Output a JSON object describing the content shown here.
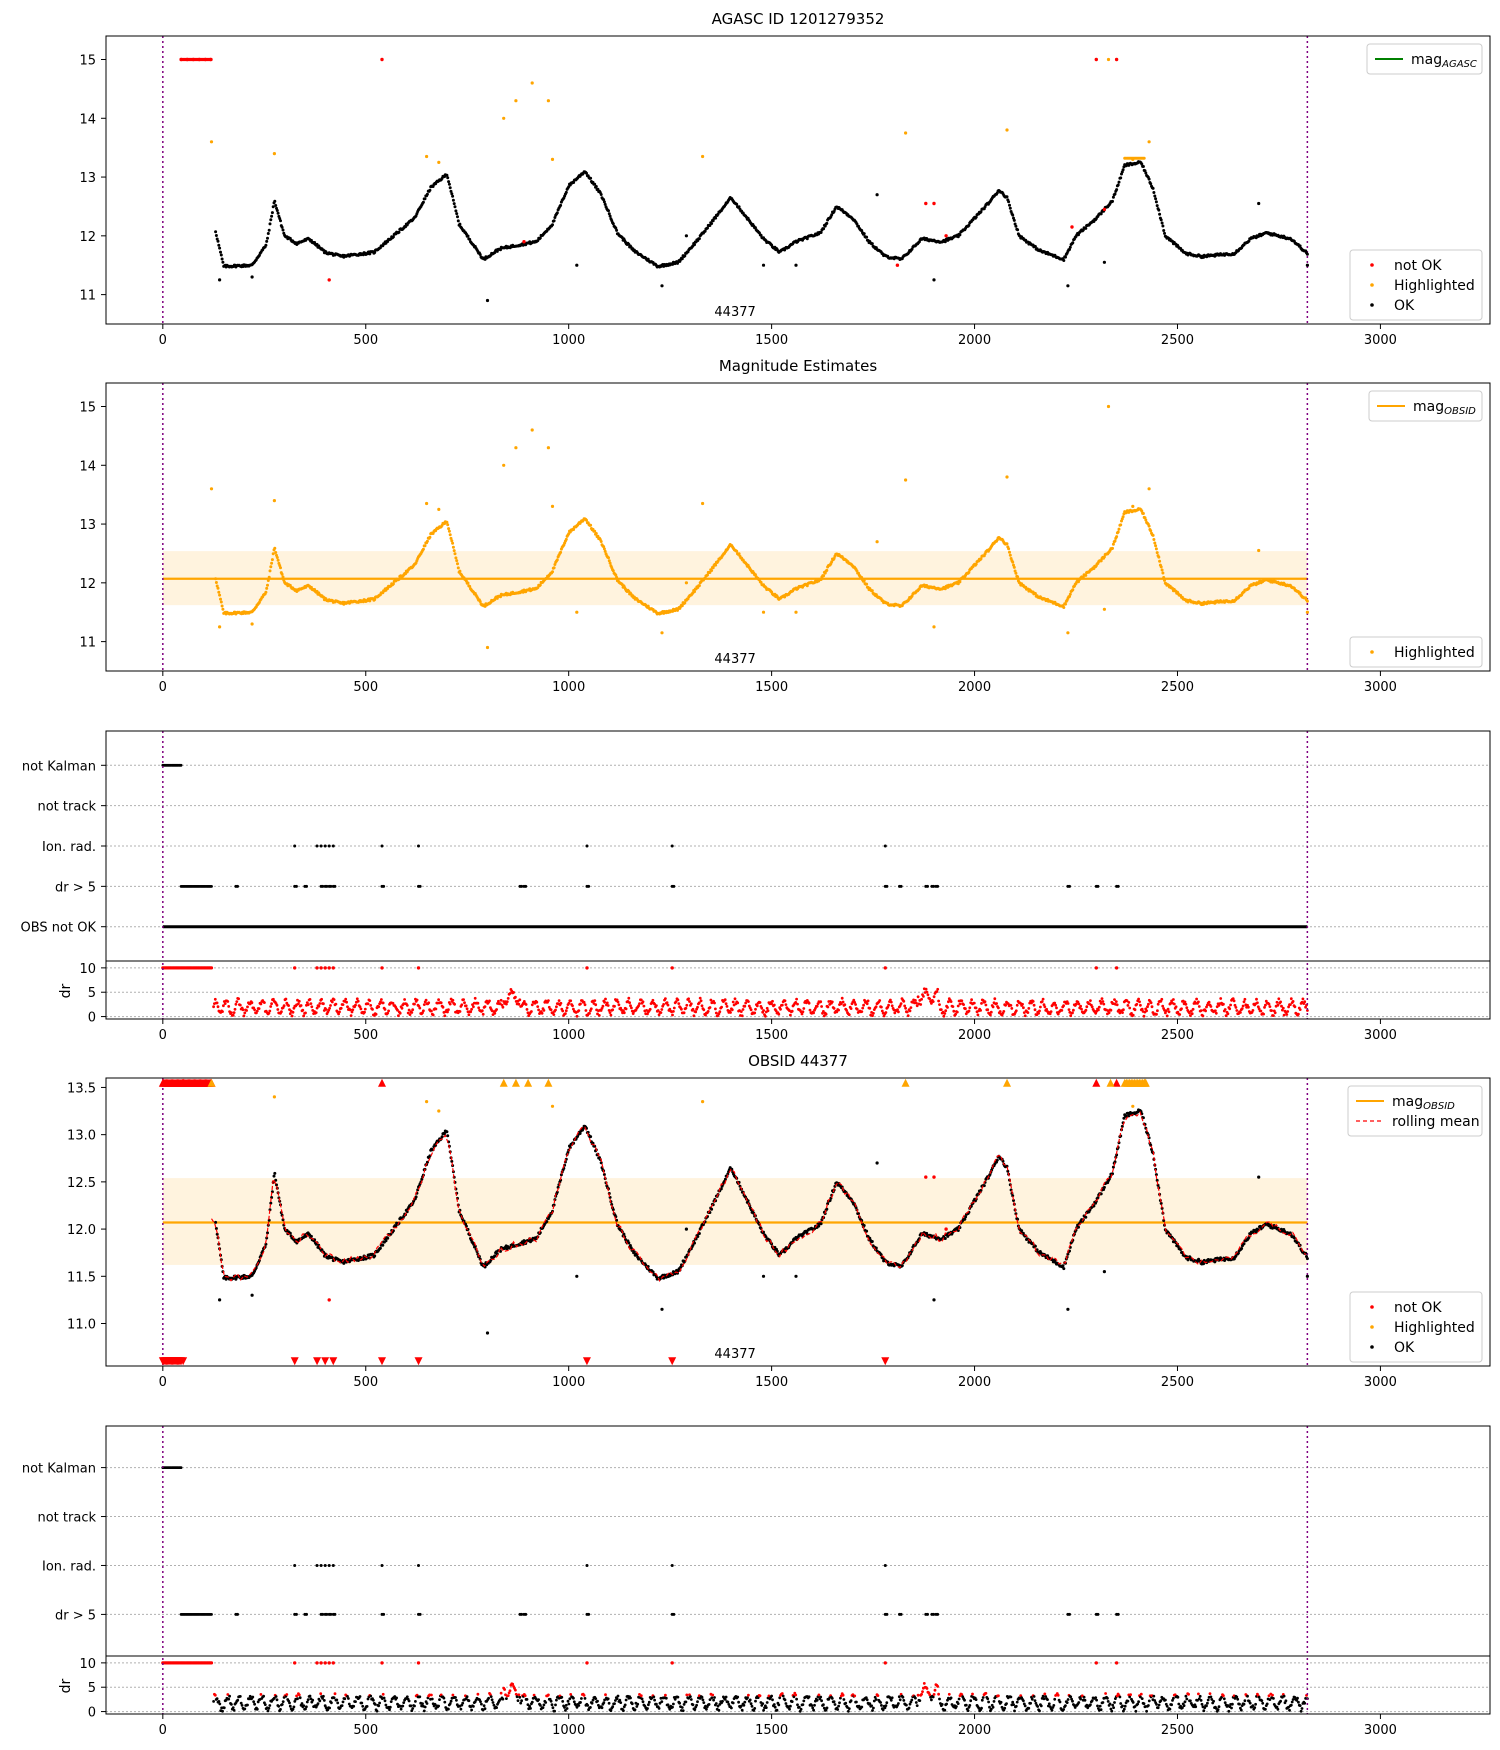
{
  "chart_data": [
    {
      "panel": "agasc",
      "type": "scatter",
      "title": "AGASC ID 1201279352",
      "xlim": [
        -140,
        3270
      ],
      "ylim": [
        10.5,
        15.4
      ],
      "x_ticks": [
        0,
        500,
        1000,
        1500,
        2000,
        2500,
        3000
      ],
      "y_ticks": [
        11,
        12,
        13,
        14,
        15
      ],
      "obsid_boundaries": [
        0,
        2820
      ],
      "obsid_label": {
        "text": "44377",
        "x": 1410
      },
      "legend_top": [
        {
          "label": "mag",
          "sub": "AGASC",
          "color": "#008000",
          "kind": "line"
        }
      ],
      "legend_bottom": [
        {
          "label": "not OK",
          "color": "#ff0000",
          "kind": "dot"
        },
        {
          "label": "Highlighted",
          "color": "#ffa500",
          "kind": "dot"
        },
        {
          "label": "OK",
          "color": "#000000",
          "kind": "dot"
        }
      ],
      "ok_curve": [
        [
          130,
          12.08
        ],
        [
          150,
          11.48
        ],
        [
          220,
          11.5
        ],
        [
          255,
          11.85
        ],
        [
          275,
          12.6
        ],
        [
          300,
          12.0
        ],
        [
          330,
          11.87
        ],
        [
          360,
          11.95
        ],
        [
          400,
          11.72
        ],
        [
          440,
          11.65
        ],
        [
          520,
          11.72
        ],
        [
          560,
          11.95
        ],
        [
          620,
          12.3
        ],
        [
          660,
          12.82
        ],
        [
          700,
          13.05
        ],
        [
          730,
          12.2
        ],
        [
          790,
          11.6
        ],
        [
          830,
          11.78
        ],
        [
          880,
          11.85
        ],
        [
          920,
          11.9
        ],
        [
          960,
          12.2
        ],
        [
          1000,
          12.85
        ],
        [
          1040,
          13.1
        ],
        [
          1080,
          12.7
        ],
        [
          1120,
          12.05
        ],
        [
          1160,
          11.75
        ],
        [
          1220,
          11.48
        ],
        [
          1270,
          11.55
        ],
        [
          1320,
          11.95
        ],
        [
          1360,
          12.3
        ],
        [
          1400,
          12.65
        ],
        [
          1440,
          12.3
        ],
        [
          1480,
          11.95
        ],
        [
          1520,
          11.72
        ],
        [
          1560,
          11.9
        ],
        [
          1620,
          12.05
        ],
        [
          1660,
          12.5
        ],
        [
          1700,
          12.3
        ],
        [
          1740,
          11.9
        ],
        [
          1780,
          11.65
        ],
        [
          1820,
          11.6
        ],
        [
          1870,
          11.95
        ],
        [
          1920,
          11.9
        ],
        [
          1960,
          12.0
        ],
        [
          2000,
          12.3
        ],
        [
          2040,
          12.6
        ],
        [
          2060,
          12.78
        ],
        [
          2080,
          12.65
        ],
        [
          2110,
          12.0
        ],
        [
          2160,
          11.75
        ],
        [
          2220,
          11.6
        ],
        [
          2250,
          12.0
        ],
        [
          2300,
          12.3
        ],
        [
          2340,
          12.6
        ],
        [
          2370,
          13.2
        ],
        [
          2410,
          13.25
        ],
        [
          2440,
          12.8
        ],
        [
          2470,
          12.0
        ],
        [
          2520,
          11.7
        ],
        [
          2560,
          11.65
        ],
        [
          2640,
          11.7
        ],
        [
          2680,
          11.95
        ],
        [
          2720,
          12.05
        ],
        [
          2780,
          11.95
        ],
        [
          2820,
          11.7
        ]
      ],
      "not_ok_points": [
        [
          45,
          15.0
        ],
        [
          60,
          15.0
        ],
        [
          75,
          15.0
        ],
        [
          90,
          15.0
        ],
        [
          105,
          15.0
        ],
        [
          118,
          15.0
        ],
        [
          540,
          15.0
        ],
        [
          2300,
          15.0
        ],
        [
          2350,
          15.0
        ],
        [
          410,
          11.25
        ],
        [
          1810,
          11.5
        ],
        [
          1880,
          12.55
        ],
        [
          1900,
          12.55
        ],
        [
          1930,
          12.0
        ],
        [
          2240,
          12.15
        ],
        [
          890,
          11.9
        ],
        [
          2320,
          12.45
        ]
      ],
      "highlighted_points": [
        [
          120,
          13.6
        ],
        [
          275,
          13.4
        ],
        [
          840,
          14.0
        ],
        [
          870,
          14.3
        ],
        [
          910,
          14.6
        ],
        [
          950,
          14.3
        ],
        [
          960,
          13.3
        ],
        [
          1330,
          13.35
        ],
        [
          1830,
          13.75
        ],
        [
          2080,
          13.8
        ],
        [
          2330,
          15.0
        ],
        [
          2390,
          13.3
        ],
        [
          2430,
          13.6
        ],
        [
          650,
          13.35
        ],
        [
          680,
          13.25
        ]
      ],
      "ok_outliers": [
        [
          140,
          11.25
        ],
        [
          220,
          11.3
        ],
        [
          800,
          10.9
        ],
        [
          1020,
          11.5
        ],
        [
          1230,
          11.15
        ],
        [
          1290,
          12.0
        ],
        [
          1480,
          11.5
        ],
        [
          1560,
          11.5
        ],
        [
          1760,
          12.7
        ],
        [
          1900,
          11.25
        ],
        [
          2230,
          11.15
        ],
        [
          2320,
          11.55
        ],
        [
          2700,
          12.55
        ],
        [
          2820,
          11.5
        ]
      ]
    },
    {
      "panel": "magnitude-estimates",
      "type": "scatter",
      "title": "Magnitude Estimates",
      "xlim": [
        -140,
        3270
      ],
      "ylim": [
        10.5,
        15.4
      ],
      "x_ticks": [
        0,
        500,
        1000,
        1500,
        2000,
        2500,
        3000
      ],
      "y_ticks": [
        11,
        12,
        13,
        14,
        15
      ],
      "obsid_boundaries": [
        0,
        2820
      ],
      "obsid_label": {
        "text": "44377",
        "x": 1410
      },
      "mag_obsid": 12.07,
      "band": [
        11.62,
        12.54
      ],
      "legend_top": [
        {
          "label": "mag",
          "sub": "OBSID",
          "color": "#ffa500",
          "kind": "line"
        }
      ],
      "legend_bottom": [
        {
          "label": "Highlighted",
          "color": "#ffa500",
          "kind": "dot"
        }
      ]
    },
    {
      "panel": "flags-1",
      "type": "scatter",
      "xlim": [
        -140,
        3270
      ],
      "ylim": [
        -0.3,
        5.7
      ],
      "x_ticks": [
        0,
        500,
        1000,
        1500,
        2000,
        2500,
        3000
      ],
      "categories": [
        "not Kalman",
        "not track",
        "Ion. rad.",
        "dr > 5",
        "OBS not OK"
      ],
      "obsid_boundaries": [
        0,
        2820
      ],
      "flags": {
        "not_kalman": {
          "from": 0,
          "to": 45
        },
        "ion_rad": [
          325,
          380,
          390,
          400,
          410,
          420,
          540,
          630,
          1045,
          1255,
          1780
        ],
        "dr5_range": {
          "from": 45,
          "to": 120
        },
        "dr5": [
          180,
          325,
          350,
          390,
          400,
          410,
          420,
          540,
          630,
          880,
          890,
          1045,
          1255,
          1780,
          1815,
          1880,
          1895,
          1905,
          2230,
          2300,
          2350
        ],
        "obs_not_ok": {
          "from": 0,
          "to": 2820
        }
      },
      "dr": {
        "ylabel": "dr",
        "ylim": [
          -0.5,
          11
        ],
        "y_ticks": [
          0,
          5,
          10
        ],
        "clip": 10
      }
    },
    {
      "panel": "obsid",
      "type": "scatter",
      "title": "OBSID 44377",
      "xlim": [
        -140,
        3270
      ],
      "ylim": [
        10.55,
        13.6
      ],
      "x_ticks": [
        0,
        500,
        1000,
        1500,
        2000,
        2500,
        3000
      ],
      "y_ticks": [
        11.0,
        11.5,
        12.0,
        12.5,
        13.0,
        13.5
      ],
      "obsid_boundaries": [
        0,
        2820
      ],
      "obsid_label": {
        "text": "44377",
        "x": 1410
      },
      "mag_obsid": 12.07,
      "band": [
        11.62,
        12.54
      ],
      "legend_top": [
        {
          "label": "mag",
          "sub": "OBSID",
          "color": "#ffa500",
          "kind": "line"
        },
        {
          "label": "rolling mean",
          "color": "#ff0000",
          "kind": "dash"
        }
      ],
      "legend_bottom": [
        {
          "label": "not OK",
          "color": "#ff0000",
          "kind": "dot"
        },
        {
          "label": "Highlighted",
          "color": "#ffa500",
          "kind": "dot"
        },
        {
          "label": "OK",
          "color": "#000000",
          "kind": "dot"
        }
      ],
      "top_clipped_not_ok": [
        [
          50,
          13.55
        ],
        [
          540,
          13.55
        ],
        [
          2300,
          13.55
        ],
        [
          2350,
          13.55
        ]
      ],
      "top_clipped_highlighted": [
        [
          120,
          13.55
        ],
        [
          840,
          13.55
        ],
        [
          870,
          13.55
        ],
        [
          900,
          13.55
        ],
        [
          950,
          13.55
        ],
        [
          1830,
          13.55
        ],
        [
          2080,
          13.55
        ],
        [
          2335,
          13.55
        ],
        [
          2420,
          13.55
        ]
      ],
      "bottom_clipped_not_ok": [
        [
          50,
          10.55
        ],
        [
          325,
          10.55
        ],
        [
          380,
          10.55
        ],
        [
          400,
          10.55
        ],
        [
          420,
          10.55
        ],
        [
          540,
          10.55
        ],
        [
          630,
          10.55
        ],
        [
          1045,
          10.55
        ],
        [
          1255,
          10.55
        ],
        [
          1780,
          10.55
        ]
      ]
    },
    {
      "panel": "flags-2",
      "type": "scatter",
      "xlim": [
        -140,
        3270
      ],
      "ylim": [
        -0.3,
        4.7
      ],
      "x_ticks": [
        0,
        500,
        1000,
        1500,
        2000,
        2500,
        3000
      ],
      "categories": [
        "not Kalman",
        "not track",
        "Ion. rad.",
        "dr > 5"
      ],
      "obsid_boundaries": [
        0,
        2820
      ],
      "dr": {
        "ylabel": "dr",
        "ylim": [
          -0.5,
          11
        ],
        "y_ticks": [
          0,
          5,
          10
        ],
        "clip": 10
      }
    }
  ]
}
